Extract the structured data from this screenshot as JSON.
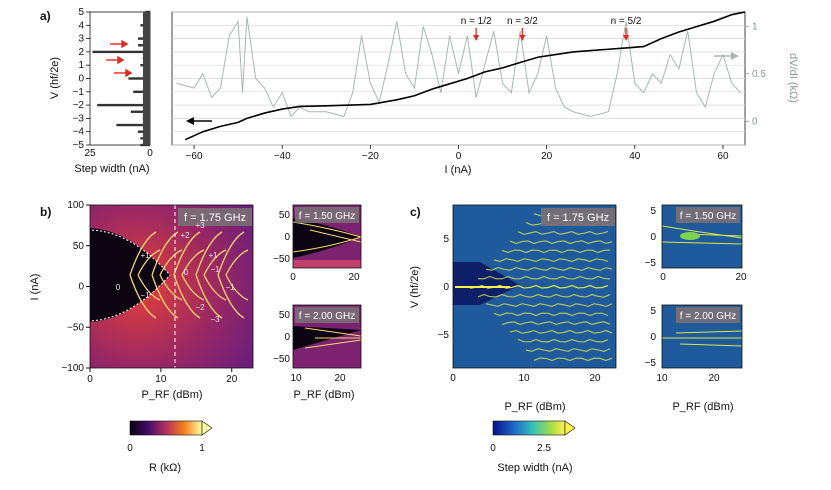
{
  "chart_data": [
    {
      "panel": "a",
      "type": "line",
      "panel_label": "a)",
      "xlabel": "I (nA)",
      "ylabel_left": "V (hf/2e)",
      "ylabel_right": "dV/dI (kΩ)",
      "xlim": [
        -65,
        65
      ],
      "ylim_left": [
        -5,
        5
      ],
      "ylim_right": [
        -0.25,
        1.15
      ],
      "x_ticks": [
        "−60",
        "−40",
        "−20",
        "0",
        "20",
        "40",
        "60"
      ],
      "y_ticks_left": [
        "−5",
        "−4",
        "−3",
        "−2",
        "−1",
        "0",
        "1",
        "2",
        "3",
        "4",
        "5"
      ],
      "y_ticks_right": [
        "0",
        "0.5",
        "1"
      ],
      "annotations": [
        {
          "text": "n = 1/2",
          "x": 4
        },
        {
          "text": "n = 3/2",
          "x": 14.5
        },
        {
          "text": "n = 5/2",
          "x": 38
        }
      ],
      "series": [
        {
          "name": "V",
          "color": "#000000",
          "x": [
            -62,
            -58,
            -54,
            -50,
            -48,
            -44,
            -40,
            -36,
            -30,
            -20,
            -14,
            -10,
            -6,
            -2,
            2,
            6,
            10,
            14,
            18,
            22,
            26,
            30,
            34,
            38,
            42,
            46,
            50,
            54,
            58,
            62,
            65
          ],
          "y": [
            -4.6,
            -4.0,
            -3.6,
            -3.3,
            -3.0,
            -2.6,
            -2.3,
            -2.1,
            -2.05,
            -1.95,
            -1.6,
            -1.3,
            -0.8,
            -0.4,
            0,
            0.5,
            0.8,
            1.2,
            1.6,
            1.8,
            2.0,
            2.1,
            2.2,
            2.3,
            2.4,
            3.0,
            3.5,
            3.9,
            4.3,
            4.8,
            5.0
          ]
        },
        {
          "name": "dV/dI",
          "color": "#a9b7b1",
          "x": [
            -64,
            -60,
            -58,
            -56,
            -54,
            -52,
            -50,
            -49,
            -48,
            -46,
            -44,
            -42,
            -40,
            -38,
            -36,
            -34,
            -30,
            -26,
            -24,
            -22,
            -20,
            -18,
            -16,
            -14,
            -12,
            -10,
            -8,
            -6,
            -4,
            -2,
            0,
            2,
            4,
            6,
            8,
            10,
            12,
            14,
            16,
            18,
            20,
            22,
            24,
            26,
            30,
            34,
            36,
            38,
            40,
            42,
            44,
            46,
            48,
            50,
            52,
            54,
            56,
            58,
            60,
            62,
            64
          ],
          "y": [
            0.4,
            0.35,
            0.5,
            0.25,
            0.35,
            0.9,
            1.05,
            0.3,
            1.1,
            0.45,
            0.35,
            0.15,
            0.3,
            0.05,
            0.15,
            0.1,
            0.1,
            0.05,
            0.3,
            0.9,
            0.4,
            0.2,
            0.6,
            1.05,
            0.5,
            0.35,
            1.0,
            0.7,
            0.3,
            0.9,
            0.5,
            0.9,
            0.25,
            0.6,
            0.95,
            0.4,
            0.3,
            0.95,
            0.3,
            0.5,
            0.9,
            0.35,
            0.15,
            0.1,
            0.05,
            0.1,
            0.5,
            1.05,
            0.4,
            0.3,
            0.5,
            0.4,
            0.7,
            0.55,
            0.95,
            0.3,
            0.15,
            0.5,
            0.7,
            0.4,
            0.3
          ]
        }
      ]
    },
    {
      "panel": "a-left",
      "type": "bar",
      "xlabel": "Step width (nA)",
      "x_ticks": [
        "25",
        "0"
      ],
      "levels": [
        -5,
        -4.5,
        -4,
        -3.5,
        -3,
        -2.5,
        -2,
        -1.5,
        -1,
        -0.5,
        0,
        0.5,
        1,
        1.5,
        2,
        2.5,
        3,
        3.5,
        4,
        4.5,
        5
      ],
      "values": [
        4,
        4,
        5,
        14,
        3,
        8,
        22,
        3,
        7,
        2,
        9,
        2,
        4,
        3,
        24,
        5,
        5,
        3,
        4,
        2,
        2
      ]
    },
    {
      "panel": "b",
      "type": "heatmap",
      "panel_label": "b)",
      "xlabel": "P_RF (dBm)",
      "ylabel": "I (nA)",
      "xlim": [
        0,
        23
      ],
      "ylim": [
        -100,
        100
      ],
      "x_ticks": [
        "0",
        "10",
        "20"
      ],
      "y_ticks": [
        "100",
        "50",
        "0",
        "−50",
        "−100"
      ],
      "frequency": "f = 1.75 GHz",
      "plateau_labels": [
        "0",
        "+1",
        "−1",
        "+2",
        "+3",
        "0",
        "−1",
        "−2",
        "−3",
        "+1",
        "−1"
      ]
    },
    {
      "panel": "b-top",
      "type": "heatmap",
      "frequency": "f = 1.50 GHz",
      "x_ticks": [
        "0",
        "20"
      ],
      "y_ticks": [
        "50",
        "0",
        "−50"
      ]
    },
    {
      "panel": "b-bottom",
      "type": "heatmap",
      "frequency": "f = 2.00 GHz",
      "xlabel": "P_RF (dBm)",
      "x_ticks": [
        "10",
        "20"
      ],
      "y_ticks": [
        "50",
        "0",
        "−50"
      ]
    },
    {
      "panel": "c",
      "type": "heatmap",
      "panel_label": "c)",
      "xlabel": "P_RF (dBm)",
      "ylabel": "V (hf/2e)",
      "xlim": [
        0,
        23
      ],
      "ylim": [
        -9,
        9
      ],
      "x_ticks": [
        "0",
        "10",
        "20"
      ],
      "y_ticks": [
        "5",
        "0",
        "−5"
      ],
      "frequency": "f = 1.75 GHz"
    },
    {
      "panel": "c-top",
      "type": "heatmap",
      "frequency": "f = 1.50 GHz",
      "x_ticks": [
        "0",
        "20"
      ],
      "y_ticks": [
        "5",
        "0",
        "−5"
      ]
    },
    {
      "panel": "c-bottom",
      "type": "heatmap",
      "frequency": "f = 2.00 GHz",
      "xlabel": "P_RF (dBm)",
      "x_ticks": [
        "10",
        "20"
      ],
      "y_ticks": [
        "5",
        "0",
        "−5"
      ]
    },
    {
      "panel": "colorbar-R",
      "type": "colorbar",
      "label": "R (kΩ)",
      "ticks": [
        "0",
        "1"
      ],
      "range": [
        0,
        1
      ]
    },
    {
      "panel": "colorbar-step",
      "type": "colorbar",
      "label": "Step width (nA)",
      "ticks": [
        "0",
        "2.5"
      ],
      "range": [
        0,
        3.5
      ]
    }
  ],
  "colors": {
    "inferno_lo": "#08010f",
    "inferno_mid": "#b3305f",
    "inferno_hi": "#fcffa4",
    "jet_bg": "#1f5a9c",
    "arrow_red": "#e0281e",
    "grid": "#cfcfcf"
  }
}
